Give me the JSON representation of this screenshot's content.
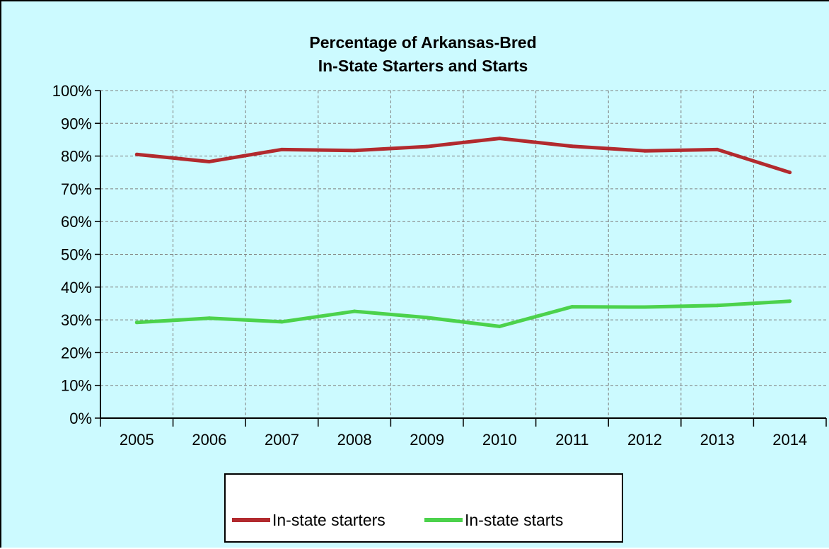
{
  "chart_data": {
    "type": "line",
    "title": "Percentage of Arkansas-Bred",
    "subtitle": "In-State Starters and Starts",
    "xlabel": "",
    "ylabel": "",
    "categories": [
      "2005",
      "2006",
      "2007",
      "2008",
      "2009",
      "2010",
      "2011",
      "2012",
      "2013",
      "2014"
    ],
    "yticks": [
      "0%",
      "10%",
      "20%",
      "30%",
      "40%",
      "50%",
      "60%",
      "70%",
      "80%",
      "90%",
      "100%"
    ],
    "ylim": [
      0,
      100
    ],
    "grid": true,
    "legend_position": "bottom",
    "series": [
      {
        "name": "In-state starters",
        "color": "#b22a2e",
        "values": [
          80.5,
          78.3,
          82.0,
          81.7,
          82.9,
          85.4,
          83.0,
          81.6,
          82.0,
          75.0
        ]
      },
      {
        "name": "In-state starts",
        "color": "#4cd24c",
        "values": [
          29.2,
          30.5,
          29.4,
          32.6,
          30.7,
          28.0,
          34.0,
          33.9,
          34.4,
          35.7
        ]
      }
    ]
  },
  "colors": {
    "background": "#ccfaff",
    "plot_area": "#ccfaff",
    "legend_box": "#ffffff",
    "grid": "#808080"
  }
}
